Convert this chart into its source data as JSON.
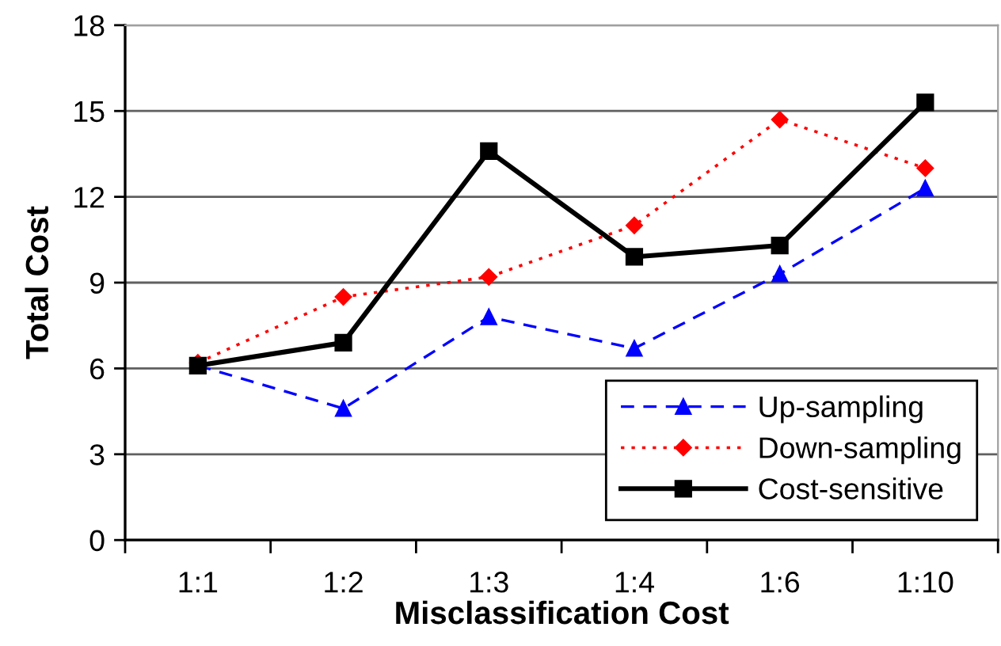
{
  "chart_data": {
    "type": "line",
    "xlabel": "Misclassification Cost",
    "ylabel": "Total Cost",
    "categories": [
      "1:1",
      "1:2",
      "1:3",
      "1:4",
      "1:6",
      "1:10"
    ],
    "series": [
      {
        "name": "Up-sampling",
        "color": "#0000ff",
        "marker": "triangle",
        "line_style": "dashed",
        "values": [
          6.1,
          4.6,
          7.8,
          6.7,
          9.3,
          12.3
        ]
      },
      {
        "name": "Down-sampling",
        "color": "#ff0000",
        "marker": "diamond",
        "line_style": "dotted",
        "values": [
          6.2,
          8.5,
          9.2,
          11.0,
          14.7,
          13.0
        ]
      },
      {
        "name": "Cost-sensitive",
        "color": "#000000",
        "marker": "square",
        "line_style": "solid",
        "values": [
          6.1,
          6.9,
          13.6,
          9.9,
          10.3,
          15.3
        ]
      }
    ],
    "ylim": [
      0,
      18
    ],
    "yticks": [
      0,
      3,
      6,
      9,
      12,
      15,
      18
    ],
    "grid": "y",
    "legend": "bottom right"
  }
}
